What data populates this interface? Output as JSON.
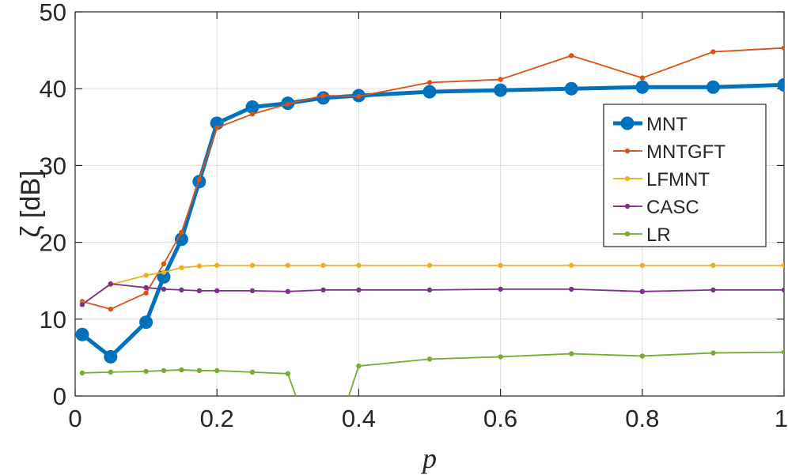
{
  "chart_data": {
    "type": "line",
    "xlabel": "p",
    "ylabel": "ζ [dB]",
    "xlim": [
      0,
      1
    ],
    "ylim": [
      0,
      50
    ],
    "xticks": [
      0,
      0.2,
      0.4,
      0.6,
      0.8,
      1
    ],
    "xtick_labels": [
      "0",
      "0.2",
      "0.4",
      "0.6",
      "0.8",
      "1"
    ],
    "yticks": [
      0,
      10,
      20,
      30,
      40,
      50
    ],
    "ytick_labels": [
      "0",
      "10",
      "20",
      "30",
      "40",
      "50"
    ],
    "grid": true,
    "legend_position": "right",
    "series": [
      {
        "name": "MNT",
        "color": "#0072BD",
        "emphasis": true,
        "x": [
          0.01,
          0.05,
          0.1,
          0.125,
          0.15,
          0.175,
          0.2,
          0.25,
          0.3,
          0.35,
          0.4,
          0.5,
          0.6,
          0.7,
          0.8,
          0.9,
          1.0
        ],
        "y": [
          8.0,
          5.1,
          9.6,
          15.5,
          20.4,
          27.9,
          35.5,
          37.6,
          38.1,
          38.8,
          39.1,
          39.6,
          39.8,
          40.0,
          40.2,
          40.2,
          40.5
        ]
      },
      {
        "name": "MNTGFT",
        "color": "#D95319",
        "x": [
          0.01,
          0.05,
          0.1,
          0.125,
          0.15,
          0.175,
          0.2,
          0.25,
          0.3,
          0.35,
          0.4,
          0.5,
          0.6,
          0.7,
          0.8,
          0.9,
          1.0
        ],
        "y": [
          12.3,
          11.3,
          13.4,
          17.2,
          21.3,
          28.2,
          34.9,
          36.7,
          38.0,
          39.1,
          39.0,
          40.8,
          41.2,
          44.3,
          41.4,
          44.8,
          45.3
        ]
      },
      {
        "name": "LFMNT",
        "color": "#EDB120",
        "x": [
          0.01,
          0.05,
          0.1,
          0.125,
          0.15,
          0.175,
          0.2,
          0.25,
          0.3,
          0.35,
          0.4,
          0.5,
          0.6,
          0.7,
          0.8,
          0.9,
          1.0
        ],
        "y": [
          12.0,
          14.5,
          15.7,
          16.1,
          16.7,
          16.9,
          17.0,
          17.0,
          17.0,
          17.0,
          17.0,
          17.0,
          17.0,
          17.0,
          17.0,
          17.0,
          17.0
        ]
      },
      {
        "name": "CASC",
        "color": "#7E2F8E",
        "x": [
          0.01,
          0.05,
          0.1,
          0.125,
          0.15,
          0.175,
          0.2,
          0.25,
          0.3,
          0.35,
          0.4,
          0.5,
          0.6,
          0.7,
          0.8,
          0.9,
          1.0
        ],
        "y": [
          11.9,
          14.6,
          14.1,
          13.9,
          13.8,
          13.7,
          13.7,
          13.7,
          13.6,
          13.8,
          13.8,
          13.8,
          13.9,
          13.9,
          13.6,
          13.8,
          13.8
        ]
      },
      {
        "name": "LR",
        "color": "#77AC30",
        "x": [
          0.01,
          0.05,
          0.1,
          0.125,
          0.15,
          0.175,
          0.2,
          0.25,
          0.3,
          0.35,
          0.4,
          0.5,
          0.6,
          0.7,
          0.8,
          0.9,
          1.0
        ],
        "y": [
          3.0,
          3.1,
          3.2,
          3.3,
          3.4,
          3.3,
          3.3,
          3.1,
          2.9,
          -10.0,
          3.9,
          4.8,
          5.1,
          5.5,
          5.2,
          5.6,
          5.7
        ]
      }
    ]
  }
}
